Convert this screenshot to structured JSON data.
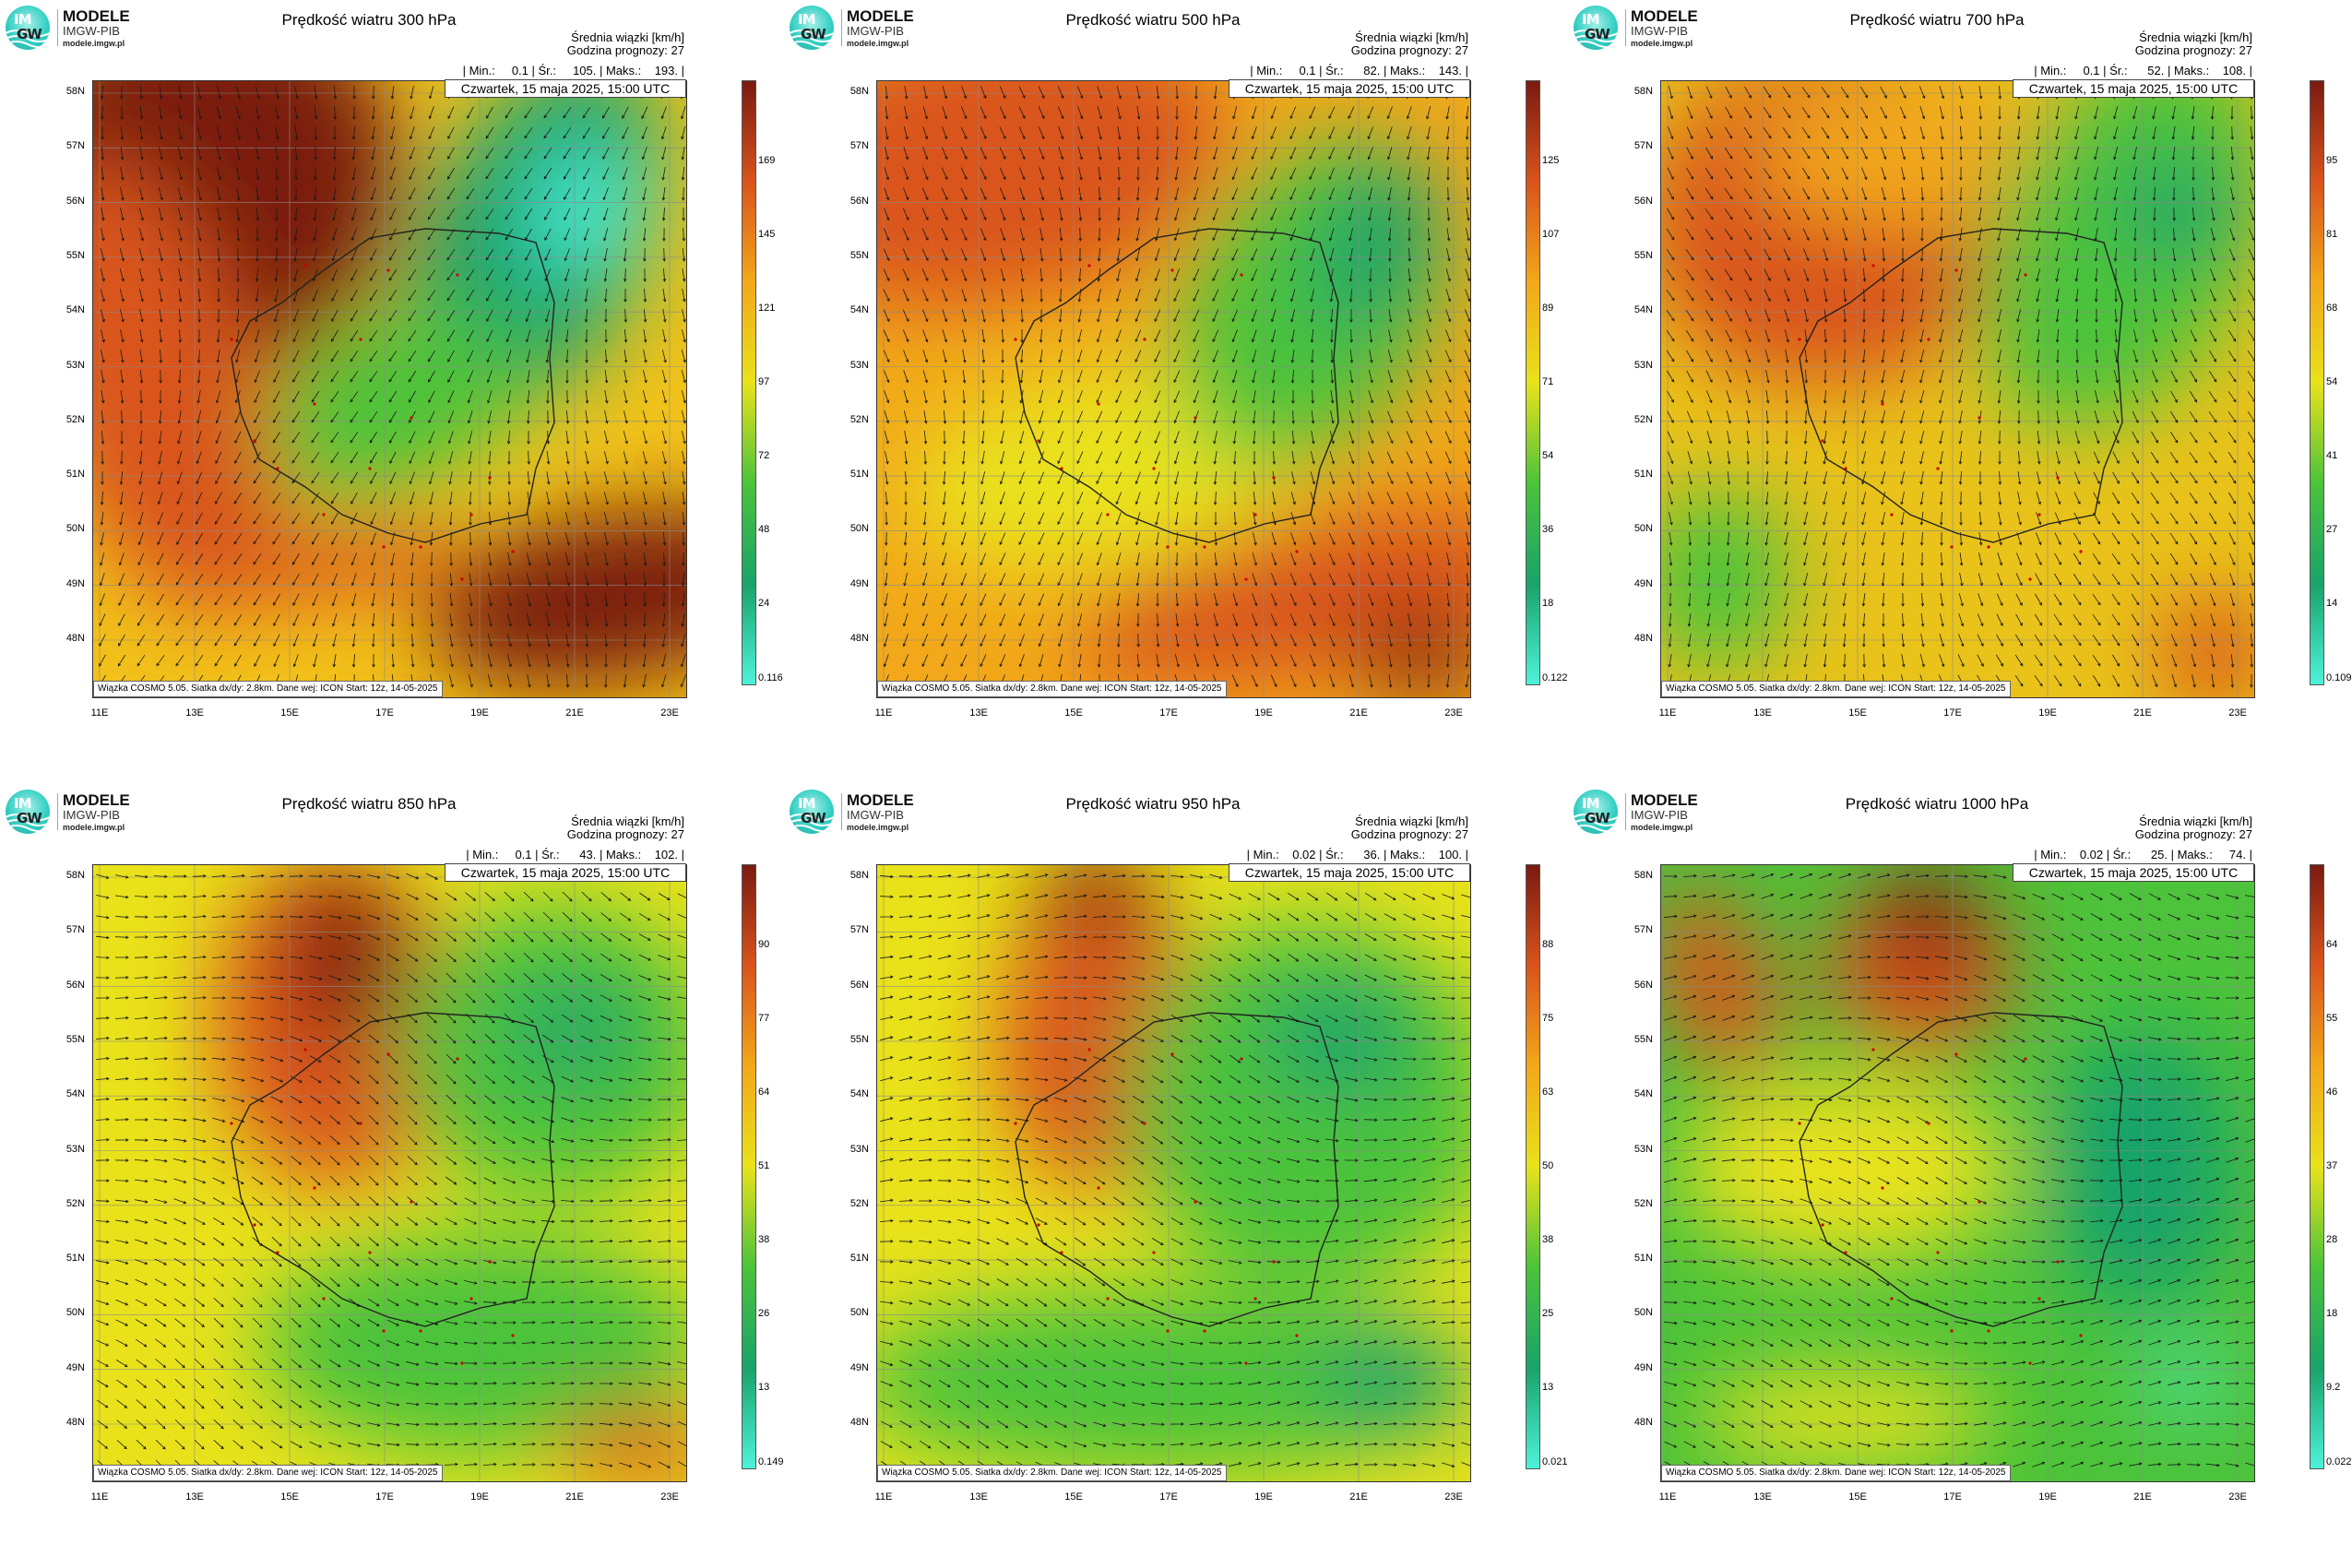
{
  "logo": {
    "mark_top": "IM",
    "mark_bottom": "GW",
    "line1": "MODELE",
    "line2": "IMGW-PIB",
    "line3": "modele.imgw.pl"
  },
  "common": {
    "info_line1": "Średnia wiązki [km/h]",
    "info_line2": "Godzina prognozy: 27",
    "date": "Czwartek, 15 maja 2025, 15:00 UTC",
    "footer": "Wiązka COSMO 5.05. Siatka dx/dy: 2.8km. Dane wej: ICON Start: 12z, 14-05-2025",
    "lat_labels": [
      "58N",
      "57N",
      "56N",
      "55N",
      "54N",
      "53N",
      "52N",
      "51N",
      "50N",
      "49N",
      "48N"
    ],
    "lon_labels": [
      "11E",
      "13E",
      "15E",
      "17E",
      "19E",
      "21E",
      "23E"
    ]
  },
  "colors": {
    "ramp": [
      "#4ef2da",
      "#19a36a",
      "#4cc33a",
      "#e9e21a",
      "#f2a81a",
      "#d9541c",
      "#7a1a10"
    ]
  },
  "panels": [
    {
      "id": "300",
      "title": "Prędkość wiatru 300 hPa",
      "stats": "| Min.:     0.1 | Śr.:     105. | Maks.:    193. |",
      "scale_ticks": [
        "169",
        "145",
        "121",
        "97",
        "72",
        "48",
        "24"
      ],
      "scale_min": "0.116"
    },
    {
      "id": "500",
      "title": "Prędkość wiatru 500 hPa",
      "stats": "| Min.:     0.1 | Śr.:      82. | Maks.:    143. |",
      "scale_ticks": [
        "125",
        "107",
        "89",
        "71",
        "54",
        "36",
        "18"
      ],
      "scale_min": "0.122"
    },
    {
      "id": "700",
      "title": "Prędkość wiatru 700 hPa",
      "stats": "| Min.:     0.1 | Śr.:      52. | Maks.:    108. |",
      "scale_ticks": [
        "95",
        "81",
        "68",
        "54",
        "41",
        "27",
        "14"
      ],
      "scale_min": "0.109"
    },
    {
      "id": "850",
      "title": "Prędkość wiatru 850 hPa",
      "stats": "| Min.:     0.1 | Śr.:      43. | Maks.:    102. |",
      "scale_ticks": [
        "90",
        "77",
        "64",
        "51",
        "38",
        "26",
        "13"
      ],
      "scale_min": "0.149"
    },
    {
      "id": "950",
      "title": "Prędkość wiatru 950 hPa",
      "stats": "| Min.:    0.02 | Śr.:      36. | Maks.:    100. |",
      "scale_ticks": [
        "88",
        "75",
        "63",
        "50",
        "38",
        "25",
        "13"
      ],
      "scale_min": "0.021"
    },
    {
      "id": "1000",
      "title": "Prędkość wiatru 1000 hPa",
      "stats": "| Min.:    0.02 | Śr.:      25. | Maks.:     74. |",
      "scale_ticks": [
        "64",
        "55",
        "46",
        "37",
        "28",
        "18",
        "9.2"
      ],
      "scale_min": "0.022"
    }
  ]
}
